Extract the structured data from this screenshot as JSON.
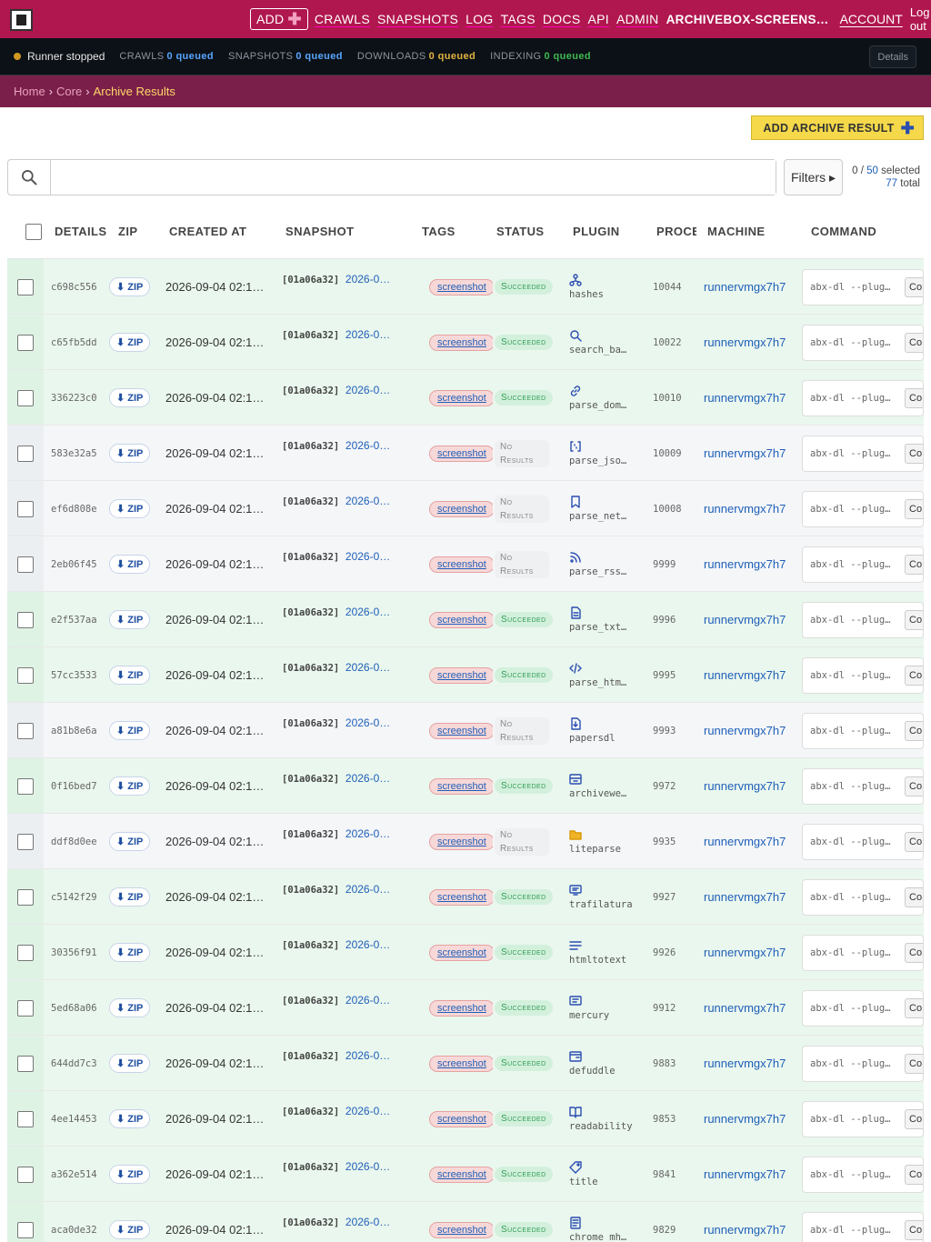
{
  "nav": {
    "add_label": "ADD",
    "links": [
      "CRAWLS",
      "SNAPSHOTS",
      "LOG",
      "TAGS",
      "DOCS",
      "API",
      "ADMIN"
    ],
    "brand": "ARCHIVEBOX-SCREENS…",
    "account": "ACCOUNT",
    "logout": "Log out"
  },
  "status": {
    "runner": "Runner stopped",
    "queues": [
      {
        "label": "CRAWLS",
        "value": "0 queued",
        "color": "#58a6ff"
      },
      {
        "label": "SNAPSHOTS",
        "value": "0 queued",
        "color": "#58a6ff"
      },
      {
        "label": "DOWNLOADS",
        "value": "0 queued",
        "color": "#e3b341"
      },
      {
        "label": "INDEXING",
        "value": "0 queued",
        "color": "#3fb950"
      }
    ],
    "details": "Details"
  },
  "breadcrumb": {
    "home": "Home",
    "core": "Core",
    "current": "Archive Results"
  },
  "toolbar": {
    "add_result": "ADD ARCHIVE RESULT",
    "search_placeholder": "",
    "filters": "Filters ▸",
    "selected": "0",
    "page_size": "50",
    "selected_suffix": "selected",
    "total": "77",
    "total_suffix": "total"
  },
  "table": {
    "headers": [
      "DETAILS",
      "ZIP",
      "CREATED AT",
      "SNAPSHOT",
      "TAGS",
      "STATUS",
      "PLUGIN",
      "PROCESS",
      "MACHINE",
      "COMMAND"
    ],
    "zip_label": "⬇ ZIP",
    "tag_label": "screenshot",
    "snap_id": "[01a06a32]",
    "snap_date": "2026-0…",
    "created": "2026-09-04 02:1…",
    "machine": "runnervmgx7h7",
    "cmd": "abx-dl --plug…",
    "copy": "Co",
    "ok_label": "Succeeded",
    "none_label": "No Results",
    "rows": [
      {
        "id": "c698c556",
        "status": "ok",
        "plugin": "hashes",
        "icon": "fork-icon",
        "pid": "10044"
      },
      {
        "id": "c65fb5dd",
        "status": "ok",
        "plugin": "search_ba…",
        "icon": "search-icon",
        "pid": "10022"
      },
      {
        "id": "336223c0",
        "status": "ok",
        "plugin": "parse_dom…",
        "icon": "link-icon",
        "pid": "10010"
      },
      {
        "id": "583e32a5",
        "status": "none",
        "plugin": "parse_jso…",
        "icon": "brackets-icon",
        "pid": "10009"
      },
      {
        "id": "ef6d808e",
        "status": "none",
        "plugin": "parse_net…",
        "icon": "bookmark-icon",
        "pid": "10008"
      },
      {
        "id": "2eb06f45",
        "status": "none",
        "plugin": "parse_rss…",
        "icon": "rss-icon",
        "pid": "9999"
      },
      {
        "id": "e2f537aa",
        "status": "ok",
        "plugin": "parse_txt…",
        "icon": "file-text-icon",
        "pid": "9996"
      },
      {
        "id": "57cc3533",
        "status": "ok",
        "plugin": "parse_htm…",
        "icon": "code-icon",
        "pid": "9995"
      },
      {
        "id": "a81b8e6a",
        "status": "none",
        "plugin": "papersdl",
        "icon": "file-down-icon",
        "pid": "9993"
      },
      {
        "id": "0f16bed7",
        "status": "ok",
        "plugin": "archivewe…",
        "icon": "archive-icon",
        "pid": "9972"
      },
      {
        "id": "ddf8d0ee",
        "status": "none",
        "plugin": "liteparse",
        "icon": "folder-icon",
        "pid": "9935"
      },
      {
        "id": "c5142f29",
        "status": "ok",
        "plugin": "trafilatura",
        "icon": "screen-icon",
        "pid": "9927"
      },
      {
        "id": "30356f91",
        "status": "ok",
        "plugin": "htmltotext",
        "icon": "lines-icon",
        "pid": "9926"
      },
      {
        "id": "5ed68a06",
        "status": "ok",
        "plugin": "mercury",
        "icon": "message-icon",
        "pid": "9912"
      },
      {
        "id": "644dd7c3",
        "status": "ok",
        "plugin": "defuddle",
        "icon": "card-icon",
        "pid": "9883"
      },
      {
        "id": "4ee14453",
        "status": "ok",
        "plugin": "readability",
        "icon": "book-icon",
        "pid": "9853"
      },
      {
        "id": "a362e514",
        "status": "ok",
        "plugin": "title",
        "icon": "tag-icon",
        "pid": "9841"
      },
      {
        "id": "aca0de32",
        "status": "ok",
        "plugin": "chrome_mh…",
        "icon": "doc-icon",
        "pid": "9829"
      }
    ]
  }
}
